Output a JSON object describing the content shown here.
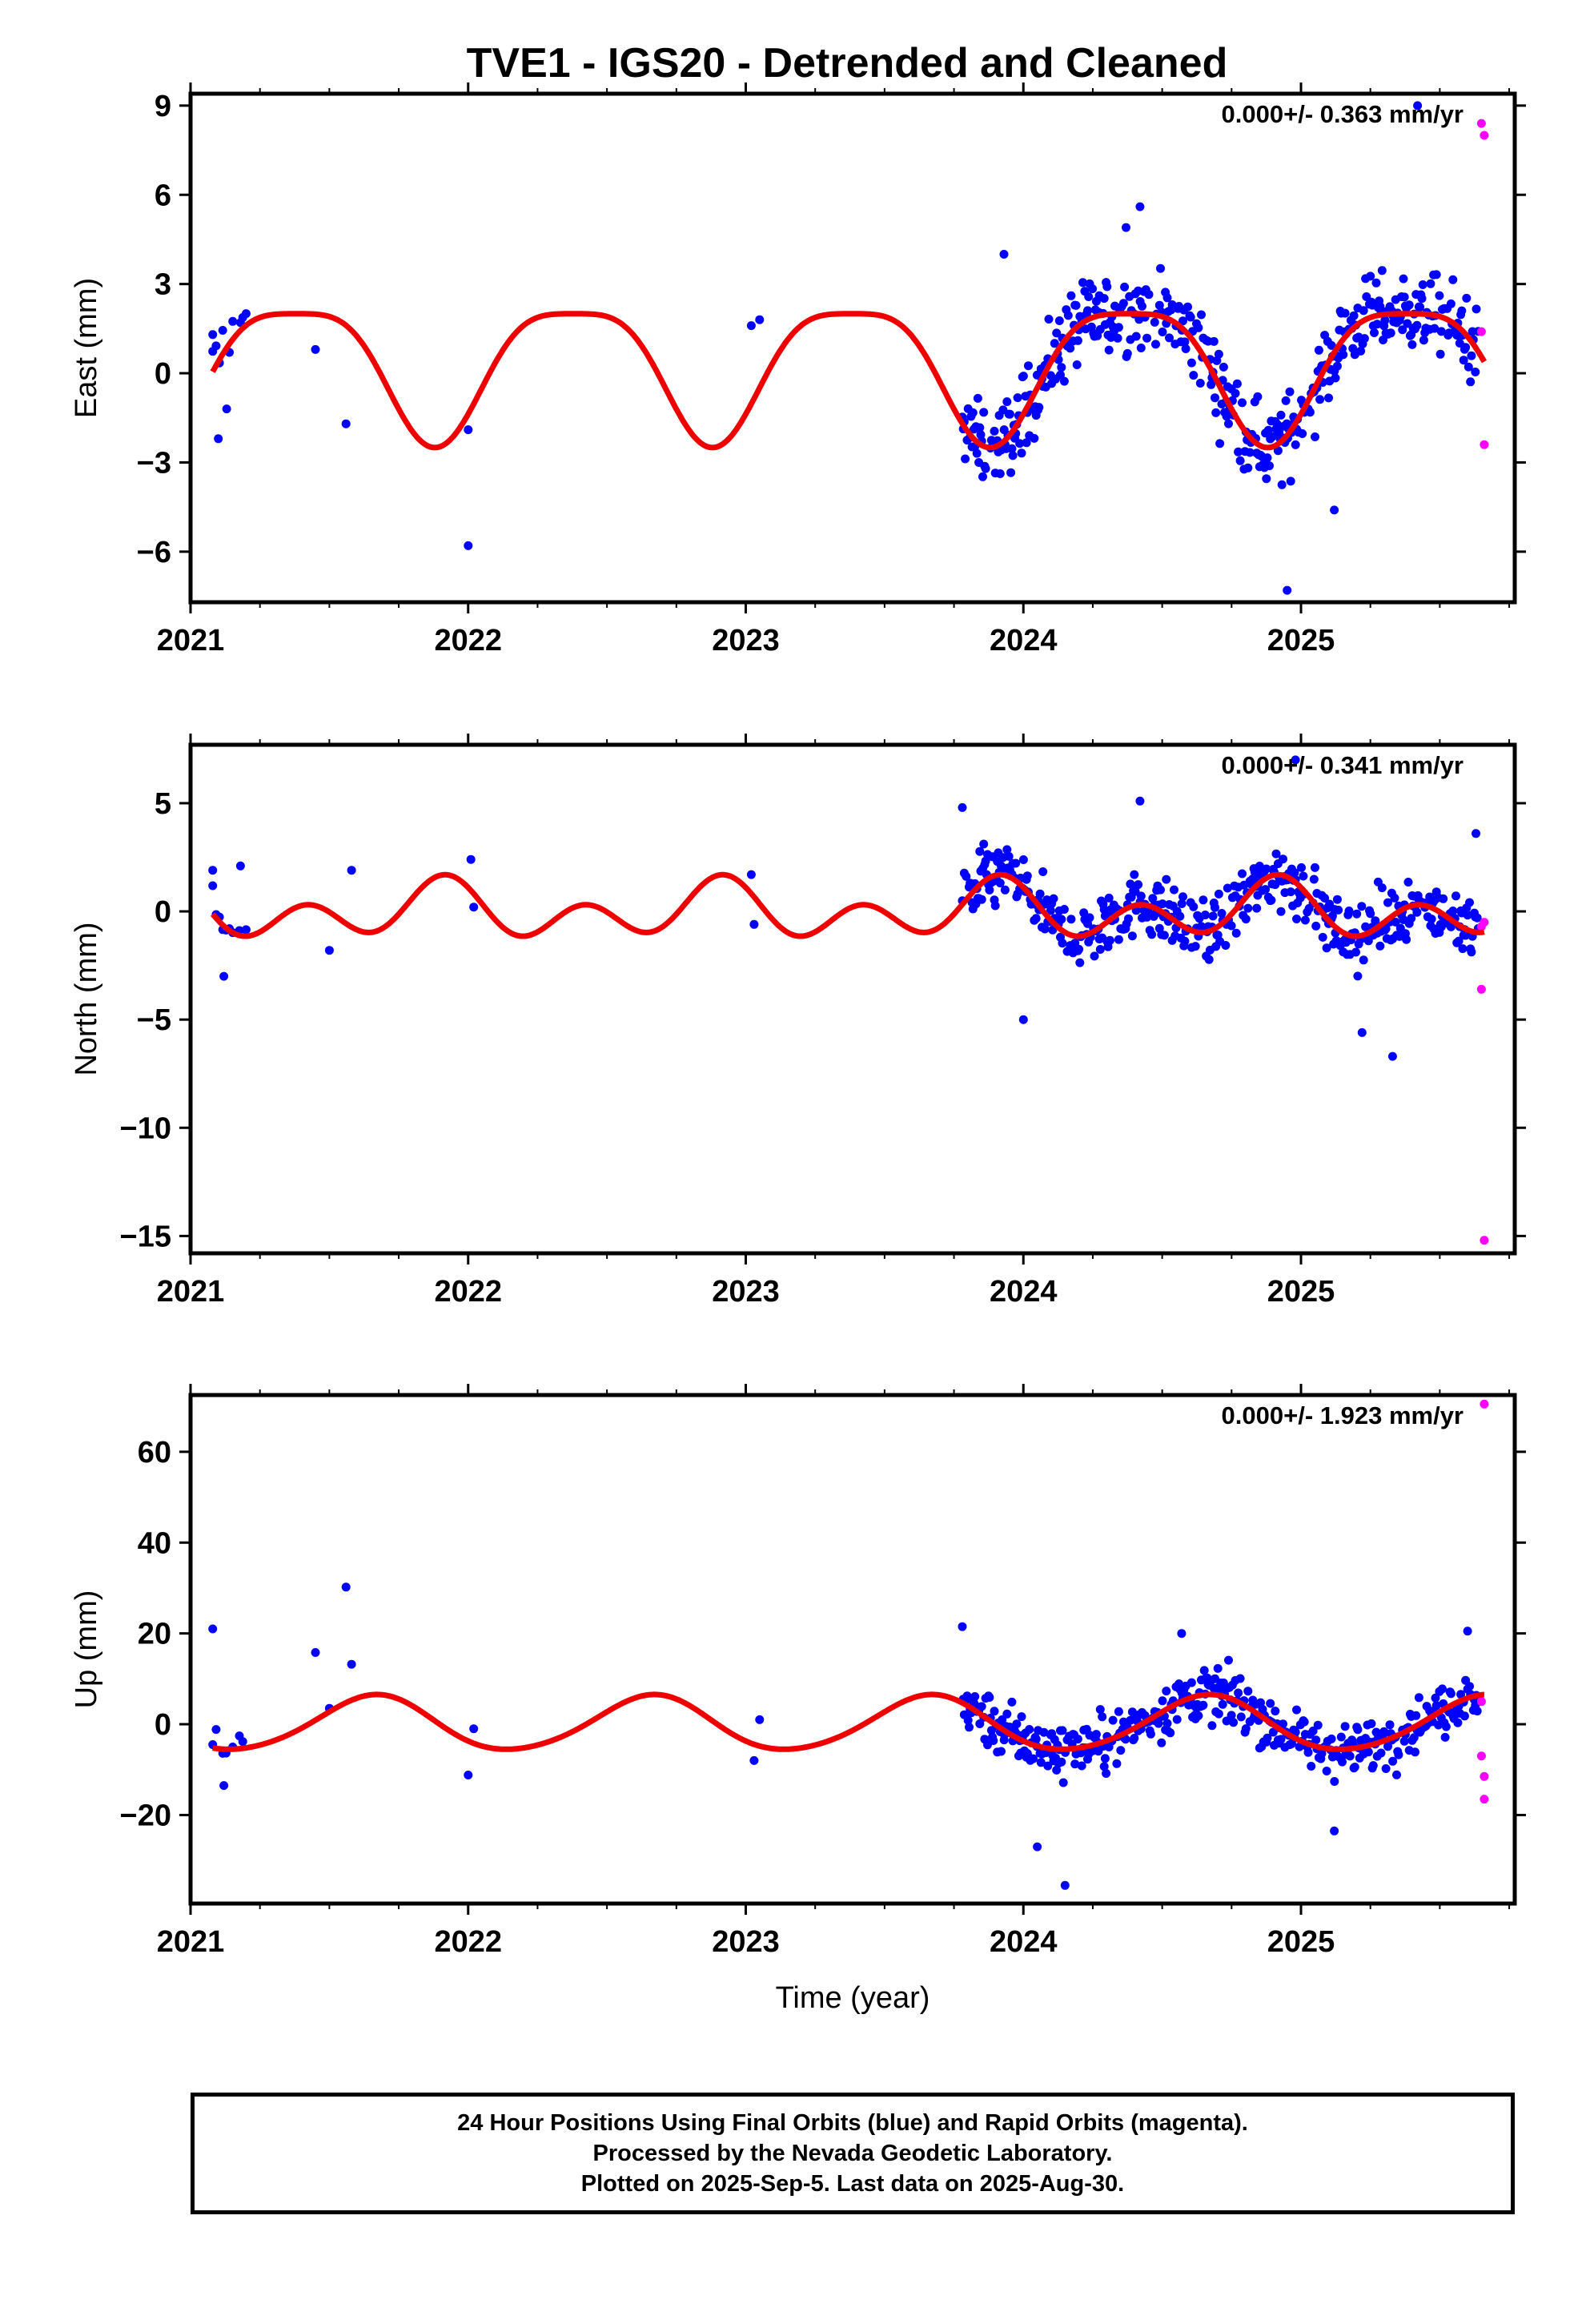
{
  "page_title": "TVE1 - IGS20 - Detrended and Cleaned",
  "colors": {
    "final_points": "#0000ff",
    "rapid_points": "#ff00ff",
    "model_curve": "#ee0000",
    "frame": "#000000"
  },
  "footer": {
    "line1": "24 Hour Positions Using Final Orbits (blue) and Rapid Orbits (magenta).",
    "line2": "Processed by the Nevada Geodetic Laboratory.",
    "line3": "Plotted on 2025-Sep-5. Last data on 2025-Aug-30."
  },
  "chart_data": [
    {
      "type": "scatter",
      "component": "east",
      "title": "TVE1 - IGS20 - Detrended and Cleaned",
      "ylabel": "East (mm)",
      "xlabel": "",
      "xlim": [
        2021.0,
        2025.77
      ],
      "ylim": [
        -7.7,
        9.4
      ],
      "x_ticks": [
        2021,
        2022,
        2023,
        2024,
        2025
      ],
      "x_tick_labels": [
        "2021",
        "2022",
        "2023",
        "2024",
        "2025"
      ],
      "y_ticks": [
        -6,
        -3,
        0,
        3,
        6,
        9
      ],
      "y_tick_labels": [
        "−6",
        "−3",
        "0",
        "3",
        "6",
        "9"
      ],
      "rate_label": "0.000+/- 0.363 mm/yr",
      "grid": false,
      "model": {
        "annual_amp": 2.25,
        "annual_phase_peak": 0.38,
        "semiannual_amp": 0.55,
        "semiannual_phase_peak": 0.13,
        "offset": 0.3
      },
      "final_noise": 1.1,
      "sample_points": [
        [
          2021.08,
          1.3
        ],
        [
          2021.1,
          -2.2
        ],
        [
          2021.13,
          -1.2
        ],
        [
          2021.18,
          1.7
        ],
        [
          2021.45,
          0.8
        ],
        [
          2021.56,
          -1.7
        ],
        [
          2022.0,
          -5.8
        ],
        [
          2022.0,
          -1.9
        ],
        [
          2023.02,
          1.6
        ],
        [
          2023.05,
          1.8
        ],
        [
          2023.93,
          4.0
        ],
        [
          2024.37,
          4.9
        ],
        [
          2024.42,
          5.6
        ],
        [
          2024.95,
          -7.3
        ],
        [
          2025.12,
          -4.6
        ],
        [
          2025.42,
          9.0
        ]
      ],
      "rapid_points": [
        [
          2025.65,
          8.4
        ],
        [
          2025.66,
          8.0
        ],
        [
          2025.65,
          1.4
        ],
        [
          2025.66,
          -2.4
        ]
      ]
    },
    {
      "type": "scatter",
      "component": "north",
      "title": "",
      "ylabel": "North (mm)",
      "xlabel": "",
      "xlim": [
        2021.0,
        2025.77
      ],
      "ylim": [
        -15.8,
        7.7
      ],
      "x_ticks": [
        2021,
        2022,
        2023,
        2024,
        2025
      ],
      "x_tick_labels": [
        "2021",
        "2022",
        "2023",
        "2024",
        "2025"
      ],
      "y_ticks": [
        -15,
        -10,
        -5,
        0,
        5
      ],
      "y_tick_labels": [
        "−15",
        "−10",
        "−5",
        "0",
        "5"
      ],
      "rate_label": "0.000+/- 0.341 mm/yr",
      "grid": false,
      "model": {
        "annual_amp": 0.7,
        "annual_phase_peak": 0.9,
        "semiannual_amp": 1.0,
        "semiannual_phase_peak": 0.92,
        "offset": 0.0
      },
      "final_noise": 1.25,
      "sample_points": [
        [
          2021.08,
          1.9
        ],
        [
          2021.12,
          -3.0
        ],
        [
          2021.18,
          2.1
        ],
        [
          2021.5,
          -1.8
        ],
        [
          2021.58,
          1.9
        ],
        [
          2022.01,
          2.4
        ],
        [
          2022.02,
          0.2
        ],
        [
          2023.02,
          1.7
        ],
        [
          2023.03,
          -0.6
        ],
        [
          2023.78,
          4.8
        ],
        [
          2024.0,
          -5.0
        ],
        [
          2024.42,
          5.1
        ],
        [
          2024.98,
          7.0
        ],
        [
          2025.22,
          -5.6
        ],
        [
          2025.33,
          -6.7
        ],
        [
          2025.63,
          3.6
        ]
      ],
      "rapid_points": [
        [
          2025.65,
          -0.7
        ],
        [
          2025.66,
          -0.5
        ],
        [
          2025.65,
          -3.6
        ],
        [
          2025.66,
          -15.2
        ]
      ]
    },
    {
      "type": "scatter",
      "component": "up",
      "title": "",
      "ylabel": "Up (mm)",
      "xlabel": "Time (year)",
      "xlim": [
        2021.0,
        2025.77
      ],
      "ylim": [
        -39.5,
        72.5
      ],
      "x_ticks": [
        2021,
        2022,
        2023,
        2024,
        2025
      ],
      "x_tick_labels": [
        "2021",
        "2022",
        "2023",
        "2024",
        "2025"
      ],
      "y_ticks": [
        -20,
        0,
        20,
        40,
        60
      ],
      "y_tick_labels": [
        "−20",
        "0",
        "20",
        "40",
        "60"
      ],
      "rate_label": "0.000+/- 1.923 mm/yr",
      "grid": false,
      "model": {
        "annual_amp": 6.0,
        "annual_phase_peak": 0.66,
        "semiannual_amp": 0.6,
        "semiannual_phase_peak": 0.2,
        "offset": 0.0
      },
      "final_noise": 4.8,
      "sample_points": [
        [
          2021.08,
          21.0
        ],
        [
          2021.12,
          -13.5
        ],
        [
          2021.45,
          15.8
        ],
        [
          2021.5,
          3.5
        ],
        [
          2021.56,
          30.2
        ],
        [
          2021.58,
          13.2
        ],
        [
          2022.0,
          -11.2
        ],
        [
          2022.02,
          -1.0
        ],
        [
          2023.03,
          -8.0
        ],
        [
          2023.05,
          1.0
        ],
        [
          2023.78,
          21.5
        ],
        [
          2024.05,
          -27.0
        ],
        [
          2024.15,
          -35.5
        ],
        [
          2024.57,
          20.0
        ],
        [
          2025.12,
          -23.5
        ],
        [
          2025.6,
          20.5
        ]
      ],
      "rapid_points": [
        [
          2025.66,
          70.5
        ],
        [
          2025.65,
          -7.0
        ],
        [
          2025.66,
          -11.5
        ],
        [
          2025.66,
          -16.5
        ],
        [
          2025.65,
          5.0
        ]
      ]
    }
  ]
}
